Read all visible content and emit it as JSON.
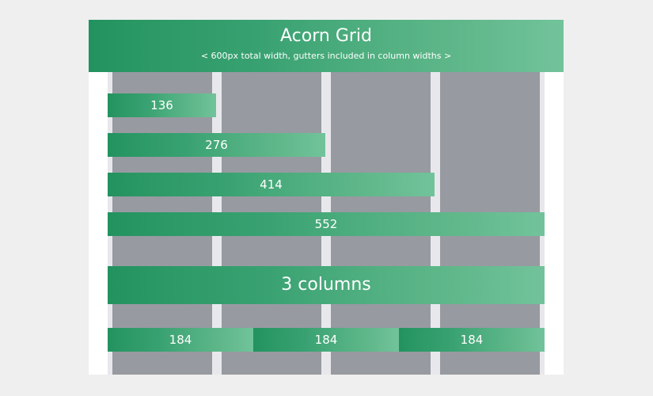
{
  "header": {
    "title": "Acorn Grid",
    "subtitle": "< 600px total width, gutters included in column widths >"
  },
  "bars": [
    {
      "label": "136",
      "width": 136
    },
    {
      "label": "276",
      "width": 276
    },
    {
      "label": "414",
      "width": 414
    },
    {
      "label": "552",
      "width": 552
    }
  ],
  "banner": {
    "label": "3 columns"
  },
  "three_columns": [
    {
      "label": "184"
    },
    {
      "label": "184"
    },
    {
      "label": "184"
    }
  ]
}
